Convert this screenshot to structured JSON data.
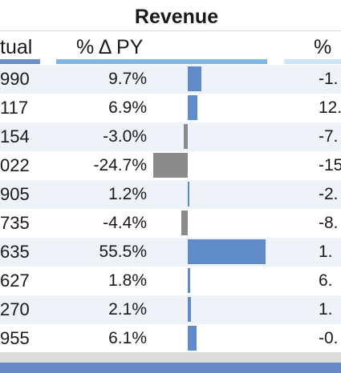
{
  "title": "Revenue",
  "headers": {
    "actual": "tual",
    "pct_py": "% Δ PY",
    "pct2": "% "
  },
  "colors": {
    "positive_bar": "#5f8bc9",
    "negative_bar": "#8a8a8a"
  },
  "rows": [
    {
      "actual": "990",
      "pct_py": "9.7%",
      "pct_py_value": 9.7,
      "pct2": "-1."
    },
    {
      "actual": "117",
      "pct_py": "6.9%",
      "pct_py_value": 6.9,
      "pct2": "12."
    },
    {
      "actual": "154",
      "pct_py": "-3.0%",
      "pct_py_value": -3.0,
      "pct2": "-7."
    },
    {
      "actual": "022",
      "pct_py": "-24.7%",
      "pct_py_value": -24.7,
      "pct2": "-15."
    },
    {
      "actual": "905",
      "pct_py": "1.2%",
      "pct_py_value": 1.2,
      "pct2": "-2."
    },
    {
      "actual": "735",
      "pct_py": "-4.4%",
      "pct_py_value": -4.4,
      "pct2": "-8."
    },
    {
      "actual": "635",
      "pct_py": "55.5%",
      "pct_py_value": 55.5,
      "pct2": "1."
    },
    {
      "actual": "627",
      "pct_py": "1.8%",
      "pct_py_value": 1.8,
      "pct2": "6."
    },
    {
      "actual": "270",
      "pct_py": "2.1%",
      "pct_py_value": 2.1,
      "pct2": "1."
    },
    {
      "actual": "955",
      "pct_py": "6.1%",
      "pct_py_value": 6.1,
      "pct2": "-0."
    }
  ]
}
